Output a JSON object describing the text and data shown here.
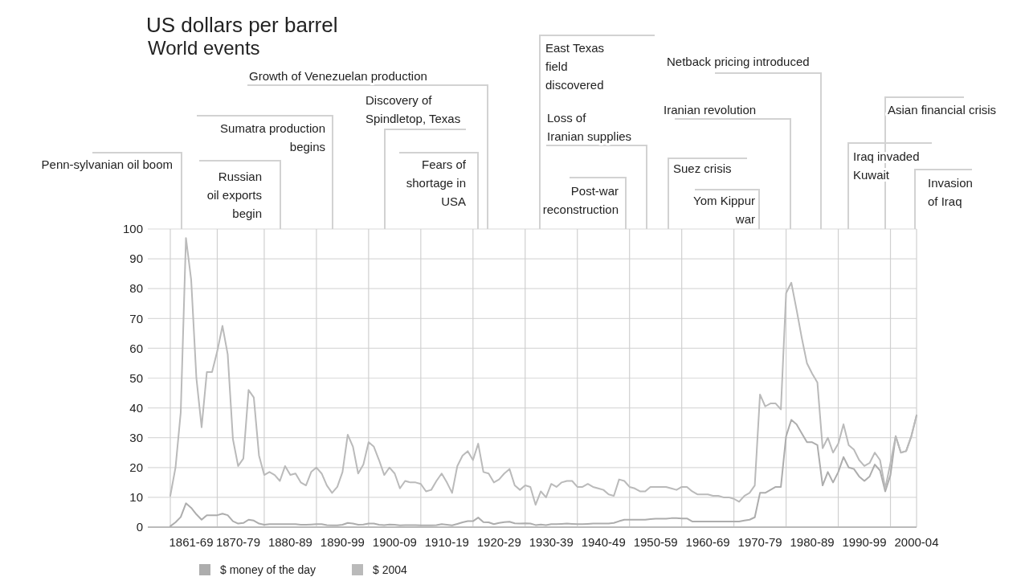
{
  "chart_data": {
    "type": "line",
    "title": "US dollars per barrel",
    "subtitle": "World events",
    "categories": [
      null,
      null,
      null,
      null,
      "1861-69",
      null,
      null,
      null,
      null,
      null,
      null,
      null,
      null,
      "1870-79",
      null,
      null,
      null,
      null,
      null,
      null,
      null,
      null,
      null,
      "1880-89",
      null,
      null,
      null,
      null,
      null,
      null,
      null,
      null,
      null,
      "1890-99",
      null,
      null,
      null,
      null,
      null,
      null,
      null,
      null,
      null,
      "1900-09",
      null,
      null,
      null,
      null,
      null,
      null,
      null,
      null,
      null,
      "1910-19",
      null,
      null,
      null,
      null,
      null,
      null,
      null,
      null,
      null,
      "1920-29",
      null,
      null,
      null,
      null,
      null,
      null,
      null,
      null,
      null,
      "1930-39",
      null,
      null,
      null,
      null,
      null,
      null,
      null,
      null,
      null,
      "1940-49",
      null,
      null,
      null,
      null,
      null,
      null,
      null,
      null,
      null,
      "1950-59",
      null,
      null,
      null,
      null,
      null,
      null,
      null,
      null,
      null,
      "1960-69",
      null,
      null,
      null,
      null,
      null,
      null,
      null,
      null,
      null,
      "1970-79",
      null,
      null,
      null,
      null,
      null,
      null,
      null,
      null,
      null,
      "1980-89",
      null,
      null,
      null,
      null,
      null,
      null,
      null,
      null,
      null,
      "1990-99",
      null,
      null,
      null,
      null,
      null,
      null,
      null,
      null,
      null,
      "2000-04"
    ],
    "series": [
      {
        "name": "$ money of the day",
        "color": "#adadad",
        "values": [
          0.3,
          1.6,
          3.4,
          8,
          6.5,
          4.3,
          2.5,
          4,
          4,
          4,
          4.5,
          4,
          2,
          1.2,
          1.4,
          2.5,
          2.2,
          1.2,
          0.8,
          1,
          1,
          1,
          1,
          1,
          1,
          0.8,
          0.8,
          0.9,
          1,
          1,
          0.7,
          0.6,
          0.6,
          0.8,
          1.4,
          1.2,
          0.8,
          0.9,
          1.2,
          1.2,
          0.8,
          0.7,
          0.9,
          0.8,
          0.6,
          0.7,
          0.7,
          0.7,
          0.6,
          0.6,
          0.6,
          0.7,
          1,
          0.8,
          0.6,
          1.1,
          1.6,
          2,
          2,
          3.2,
          1.7,
          1.6,
          1,
          1.4,
          1.7,
          1.8,
          1.3,
          1.2,
          1.3,
          1.2,
          0.7,
          0.9,
          0.7,
          1,
          1,
          1.1,
          1.2,
          1.1,
          1,
          1,
          1.1,
          1.2,
          1.2,
          1.2,
          1.2,
          1.4,
          2,
          2.5,
          2.5,
          2.5,
          2.5,
          2.5,
          2.7,
          2.8,
          2.8,
          2.8,
          3,
          3,
          2.9,
          2.9,
          1.9,
          1.9,
          1.9,
          1.9,
          1.9,
          1.9,
          1.9,
          1.9,
          1.9,
          1.9,
          2.2,
          2.5,
          3.3,
          11.5,
          11.5,
          12.5,
          13.5,
          13.5,
          30.5,
          36,
          34.5,
          31.5,
          28.5,
          28.5,
          27.5,
          14,
          18.5,
          15,
          18.5,
          23.5,
          20,
          19.5,
          17,
          15.5,
          17,
          21,
          19,
          12,
          17.5,
          30.5,
          25,
          25.5,
          30.5,
          37.5
        ]
      },
      {
        "name": "$ 2004",
        "color": "#bababa",
        "values": [
          10.5,
          20,
          38.5,
          97,
          83,
          50,
          33.5,
          52,
          52,
          59,
          67.5,
          58,
          29.5,
          20.5,
          23,
          46,
          43.5,
          24,
          17.5,
          18.5,
          17.5,
          15.5,
          20.5,
          17.5,
          18,
          15,
          14,
          18.5,
          20,
          18,
          14,
          11.5,
          13.5,
          18.5,
          31,
          27,
          18,
          21,
          28.5,
          27,
          22.5,
          17.5,
          20,
          18,
          13,
          15.5,
          15,
          15,
          14.5,
          12,
          12.5,
          15.5,
          18,
          15,
          11.5,
          20.5,
          24,
          25.5,
          22.5,
          28,
          18.5,
          18,
          15,
          16,
          18,
          19.5,
          14,
          12.5,
          14,
          13.5,
          7.5,
          12,
          10,
          14.5,
          13.5,
          15,
          15.5,
          15.5,
          13.5,
          13.5,
          14.5,
          13.5,
          13,
          12.5,
          11,
          10.5,
          16,
          15.5,
          13.5,
          13,
          12,
          12,
          13.5,
          13.5,
          13.5,
          13.5,
          13,
          12.5,
          13.5,
          13.5,
          12,
          11,
          11,
          11,
          10.5,
          10.5,
          10,
          10,
          9.5,
          8.5,
          10.5,
          11.5,
          14,
          44.5,
          40.5,
          41.5,
          41.5,
          39.5,
          78.5,
          82,
          73,
          63.5,
          55,
          51.5,
          48.5,
          26.5,
          30,
          25,
          28,
          34.5,
          27.5,
          26,
          22.5,
          20.5,
          21.5,
          25,
          22.5,
          13,
          21.5,
          30.5,
          25,
          25.5,
          30.5,
          37.5
        ]
      }
    ],
    "ylim": [
      0,
      100
    ],
    "yticks": [
      0,
      10,
      20,
      30,
      40,
      50,
      60,
      70,
      80,
      90,
      100
    ],
    "grid": true,
    "legend": "bottom",
    "marker": "none",
    "line_style": "solid",
    "annotations": [
      "Penn-sylvanian oil boom",
      "Russian oil exports begin",
      "Sumatra production begins",
      "Growth of Venezuelan production",
      "Discovery of Spindletop, Texas",
      "Fears of shortage in USA",
      "East Texas field discovered",
      "Loss of Iranian supplies",
      "Post-war reconstruction",
      "Suez crisis",
      "Yom Kippur war",
      "Iranian revolution",
      "Netback pricing introduced",
      "Iraq invaded Kuwait",
      "Asian financial crisis",
      "Invasion of Iraq"
    ]
  }
}
